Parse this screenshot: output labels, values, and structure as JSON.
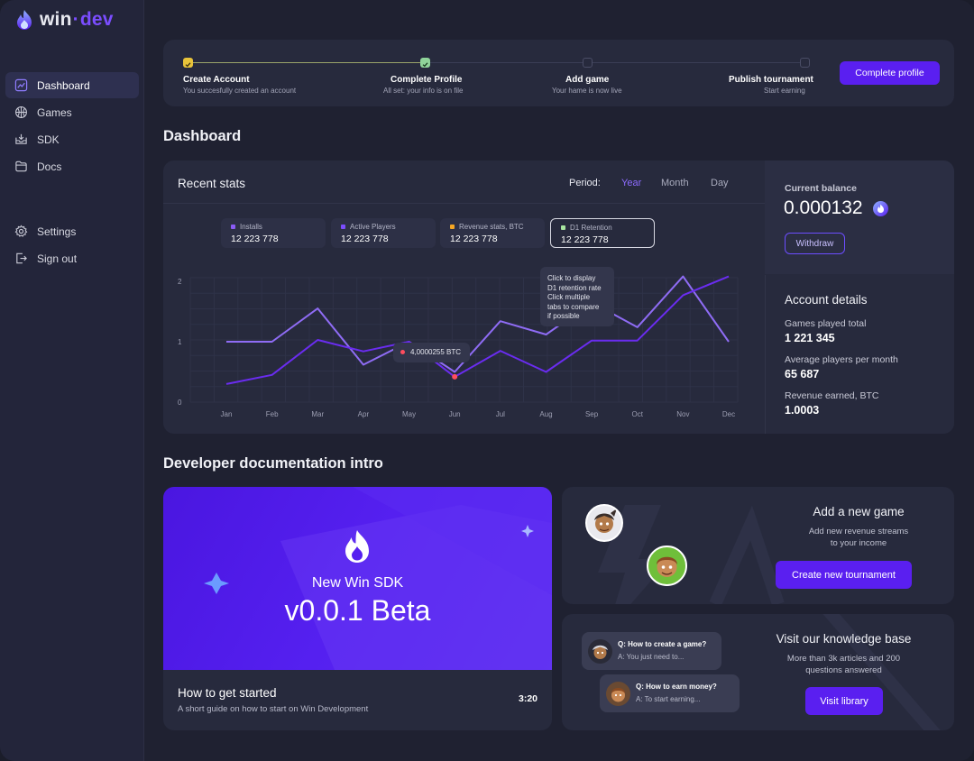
{
  "brand": {
    "name_part1": "win",
    "name_sep": "·",
    "name_part2": "dev"
  },
  "sidebar": {
    "items": [
      {
        "label": "Dashboard",
        "icon": "chart-icon",
        "active": true
      },
      {
        "label": "Games",
        "icon": "ball-icon"
      },
      {
        "label": "SDK",
        "icon": "download-box-icon"
      },
      {
        "label": "Docs",
        "icon": "folder-icon"
      }
    ],
    "bottom_items": [
      {
        "label": "Settings",
        "icon": "gear-icon"
      },
      {
        "label": "Sign out",
        "icon": "sign-out-icon"
      }
    ]
  },
  "onboarding": {
    "steps": [
      {
        "title": "Create Account",
        "subtitle": "You succesfully created an account",
        "status": "done"
      },
      {
        "title": "Complete Profile",
        "subtitle": "All set: your info is on file",
        "status": "done"
      },
      {
        "title": "Add game",
        "subtitle": "Your hame is now live",
        "status": "pending"
      },
      {
        "title": "Publish tournament",
        "subtitle": "Start  earning",
        "status": "pending"
      }
    ],
    "cta_label": "Complete profile"
  },
  "dashboard_title": "Dashboard",
  "stats": {
    "title": "Recent stats",
    "period_label": "Period:",
    "periods": [
      "Year",
      "Month",
      "Day"
    ],
    "active_period": "Year",
    "legend": [
      {
        "name": "Installs",
        "value": "12 223 778",
        "color": "#8b5cf6"
      },
      {
        "name": "Active Players",
        "value": "12 223 778",
        "color": "#7c4dff"
      },
      {
        "name": "Revenue stats, BTC",
        "value": "12 223 778",
        "color": "#f5a623"
      },
      {
        "name": "D1 Retention",
        "value": "12 223 778",
        "color": "#a8e6a0"
      }
    ],
    "hint_tooltip": [
      "Click to display",
      "D1 retention rate",
      "Click multiple",
      "tabs to compare",
      "if possible"
    ],
    "point_tooltip": "4,0000255 BTC"
  },
  "chart_data": {
    "type": "line",
    "categories": [
      "Jan",
      "Feb",
      "Mar",
      "Apr",
      "May",
      "Jun",
      "Jul",
      "Aug",
      "Sep",
      "Oct",
      "Nov",
      "Dec"
    ],
    "y_ticks": [
      "0",
      "1",
      "2"
    ],
    "ylim": [
      0,
      2
    ],
    "grid": true,
    "series": [
      {
        "color": "#8f6cf5",
        "values": [
          1.0,
          1.0,
          1.55,
          0.62,
          1.0,
          0.5,
          1.34,
          1.12,
          1.65,
          1.24,
          2.08,
          1.0
        ]
      },
      {
        "color": "#6a2cf0",
        "values": [
          0.3,
          0.45,
          1.03,
          0.84,
          1.0,
          0.42,
          0.85,
          0.5,
          1.02,
          1.02,
          1.77,
          2.08
        ]
      }
    ],
    "highlight": {
      "category": "Jun",
      "value": 0.42,
      "label": "4,0000255 BTC",
      "color": "#ff4d5e"
    }
  },
  "balance": {
    "label": "Current balance",
    "value": "0.000132",
    "coin_icon": "flame-coin-icon",
    "withdraw_label": "Withdraw"
  },
  "account": {
    "title": "Account  details",
    "rows": [
      {
        "label": "Games played total",
        "value": "1 221 345"
      },
      {
        "label": "Average players per month",
        "value": "65 687"
      },
      {
        "label": "Revenue earned, BTC",
        "value": "1.0003"
      }
    ]
  },
  "docs_title": "Developer documentation intro",
  "video": {
    "hero_line1": "New Win SDK",
    "hero_line2": "v0.0.1 Beta",
    "title": "How to get started",
    "subtitle": "A short guide on how to start on Win Development",
    "duration": "3:20"
  },
  "add_game": {
    "title": "Add a new game",
    "subtitle_line1": "Add new revenue streams",
    "subtitle_line2": "to your income",
    "button": "Create new tournament"
  },
  "knowledge": {
    "title": "Visit our knowledge base",
    "subtitle_line1": "More than 3k articles and 200",
    "subtitle_line2": "questions answered",
    "button": "Visit library",
    "bubbles": [
      {
        "q": "Q: How to create a game?",
        "a": "A: You just need to..."
      },
      {
        "q": "Q: How to earn money?",
        "a": "A: To start earning..."
      }
    ]
  },
  "colors": {
    "accent": "#5a1ff0",
    "bg": "#1f2131",
    "card": "#272a3d"
  }
}
